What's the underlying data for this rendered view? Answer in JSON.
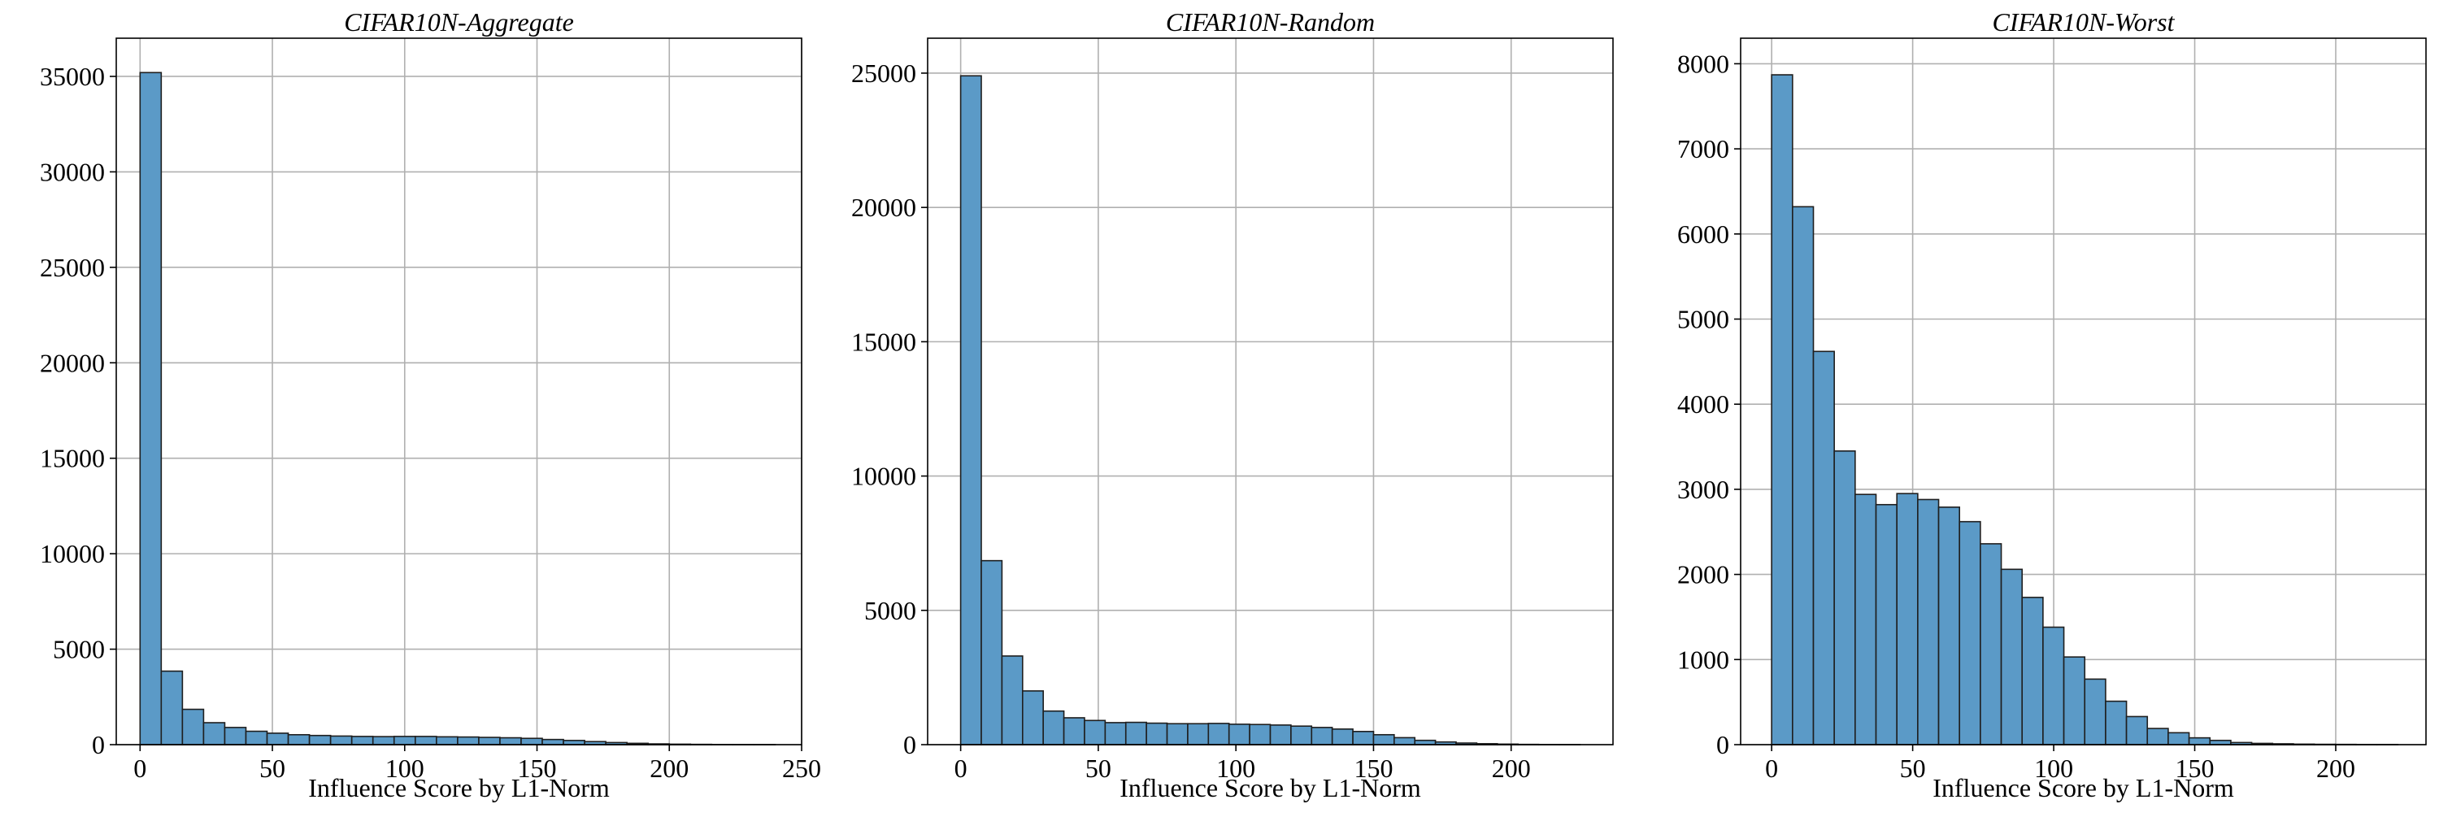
{
  "chart_data": [
    {
      "type": "bar",
      "title": "CIFAR10N-Aggregate",
      "xlabel": "Influence Score by L1-Norm",
      "ylabel": "",
      "xlim": [
        -9,
        250
      ],
      "ylim": [
        0,
        37000
      ],
      "xticks": [
        0,
        50,
        100,
        150,
        200,
        250
      ],
      "yticks": [
        0,
        5000,
        10000,
        15000,
        20000,
        25000,
        30000,
        35000
      ],
      "grid": true,
      "bin_edges": [
        0,
        8,
        16,
        24,
        32,
        40,
        48,
        56,
        64,
        72,
        80,
        88,
        96,
        104,
        112,
        120,
        128,
        136,
        144,
        152,
        160,
        168,
        176,
        184,
        192,
        200,
        208,
        216,
        224,
        232,
        240
      ],
      "values": [
        35200,
        3850,
        1850,
        1150,
        900,
        700,
        600,
        520,
        480,
        450,
        430,
        420,
        430,
        430,
        410,
        400,
        380,
        360,
        330,
        270,
        220,
        160,
        110,
        70,
        40,
        25,
        15,
        8,
        5,
        3
      ],
      "color": "#5b9ac7"
    },
    {
      "type": "bar",
      "title": "CIFAR10N-Random",
      "xlabel": "Influence Score by L1-Norm",
      "ylabel": "",
      "xlim": [
        -12,
        237
      ],
      "ylim": [
        0,
        26300
      ],
      "xticks": [
        0,
        50,
        100,
        150,
        200
      ],
      "yticks": [
        0,
        5000,
        10000,
        15000,
        20000,
        25000
      ],
      "grid": true,
      "bin_edges": [
        0,
        7.5,
        15,
        22.5,
        30,
        37.5,
        45,
        52.5,
        60,
        67.5,
        75,
        82.5,
        90,
        97.5,
        105,
        112.5,
        120,
        127.5,
        135,
        142.5,
        150,
        157.5,
        165,
        172.5,
        180,
        187.5,
        195,
        202.5,
        210,
        217.5,
        225
      ],
      "values": [
        24900,
        6850,
        3300,
        2000,
        1250,
        1000,
        900,
        820,
        830,
        800,
        780,
        780,
        790,
        760,
        750,
        730,
        690,
        640,
        580,
        490,
        370,
        260,
        160,
        100,
        60,
        35,
        20,
        10,
        5,
        3
      ],
      "color": "#5b9ac7"
    },
    {
      "type": "bar",
      "title": "CIFAR10N-Worst",
      "xlabel": "Influence Score by L1-Norm",
      "ylabel": "",
      "xlim": [
        -11,
        232
      ],
      "ylim": [
        0,
        8300
      ],
      "xticks": [
        0,
        50,
        100,
        150,
        200
      ],
      "yticks": [
        0,
        1000,
        2000,
        3000,
        4000,
        5000,
        6000,
        7000,
        8000
      ],
      "grid": true,
      "bin_edges": [
        0,
        7.4,
        14.8,
        22.2,
        29.6,
        37,
        44.4,
        51.8,
        59.2,
        66.6,
        74,
        81.4,
        88.8,
        96.2,
        103.6,
        111,
        118.4,
        125.8,
        133.2,
        140.6,
        148,
        155.4,
        162.8,
        170.2,
        177.6,
        185,
        192.4,
        199.8,
        207.2,
        214.6,
        222
      ],
      "values": [
        7870,
        6320,
        4620,
        3450,
        2940,
        2820,
        2950,
        2880,
        2790,
        2620,
        2360,
        2060,
        1730,
        1380,
        1030,
        770,
        510,
        330,
        190,
        140,
        80,
        50,
        25,
        15,
        10,
        6,
        4,
        3,
        2,
        2
      ],
      "color": "#5b9ac7"
    }
  ]
}
